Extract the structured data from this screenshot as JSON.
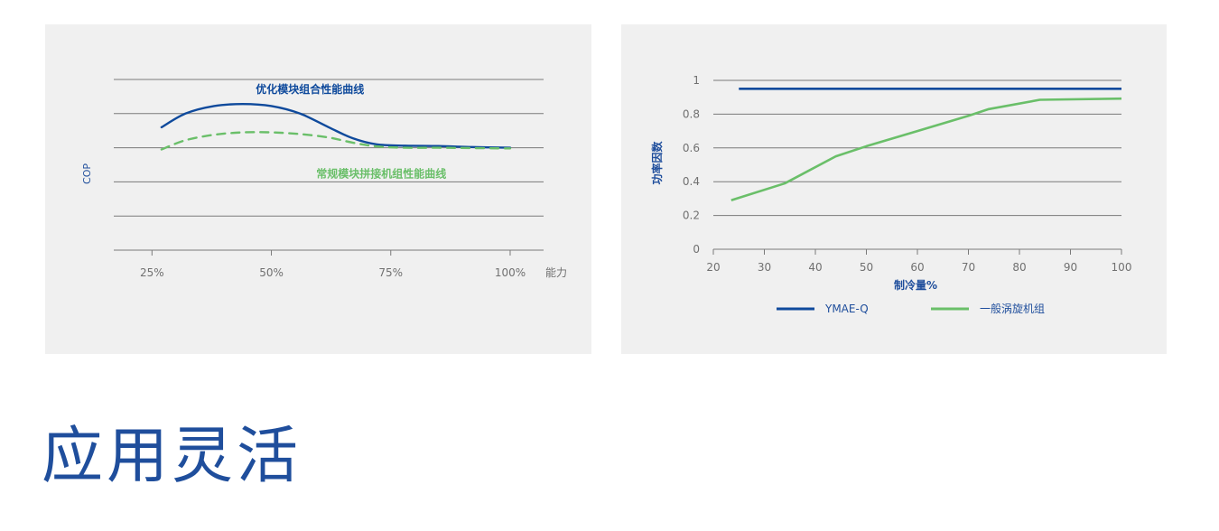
{
  "colors": {
    "panel_bg": "#f0f0f0",
    "grid": "#7a7a7a",
    "blue": "#0f4a9c",
    "green": "#6abf69",
    "axis_text": "#707070",
    "label_blue": "#1f4e9c"
  },
  "heading": "应用灵活",
  "chart_data": [
    {
      "type": "line",
      "xlabel": "能力",
      "ylabel": "COP",
      "x_ticks": [
        "25%",
        "50%",
        "75%",
        "100%"
      ],
      "x_tick_values": [
        25,
        50,
        75,
        100
      ],
      "xlim": [
        17,
        107
      ],
      "ylim": [
        0,
        5
      ],
      "y_grid_values": [
        0,
        1,
        2,
        3,
        4,
        5
      ],
      "grid": true,
      "series": [
        {
          "name": "优化模块组合性能曲线",
          "style": "solid",
          "color": "#0f4a9c",
          "x": [
            27,
            32,
            38,
            44,
            50,
            56,
            62,
            67,
            72,
            78,
            85,
            92,
            100
          ],
          "y": [
            3.6,
            4.0,
            4.22,
            4.28,
            4.22,
            4.0,
            3.6,
            3.28,
            3.1,
            3.06,
            3.05,
            3.02,
            3.0
          ]
        },
        {
          "name": "常规模块拼接机组性能曲线",
          "style": "dashed",
          "color": "#6abf69",
          "x": [
            27,
            32,
            38,
            44,
            50,
            56,
            62,
            67,
            72,
            78,
            85,
            92,
            100
          ],
          "y": [
            2.95,
            3.22,
            3.38,
            3.45,
            3.45,
            3.4,
            3.3,
            3.15,
            3.04,
            3.0,
            3.0,
            2.99,
            2.98
          ]
        }
      ]
    },
    {
      "type": "line",
      "xlabel": "制冷量%",
      "ylabel": "功率因数",
      "x_ticks": [
        "20",
        "30",
        "40",
        "50",
        "60",
        "70",
        "80",
        "90",
        "100"
      ],
      "x_tick_values": [
        20,
        30,
        40,
        50,
        60,
        70,
        80,
        90,
        100
      ],
      "y_ticks": [
        "0",
        "0.2",
        "0.4",
        "0.6",
        "0.8",
        "1"
      ],
      "y_tick_values": [
        0,
        0.2,
        0.4,
        0.6,
        0.8,
        1
      ],
      "xlim": [
        20,
        100
      ],
      "ylim": [
        0,
        1
      ],
      "grid": true,
      "legend_position": "bottom",
      "series": [
        {
          "name": "YMAE-Q",
          "color": "#0f4a9c",
          "x": [
            25,
            100
          ],
          "y": [
            0.95,
            0.95
          ]
        },
        {
          "name": "一般涡旋机组",
          "color": "#6abf69",
          "x": [
            23.5,
            34,
            44,
            50,
            60,
            70,
            74,
            84,
            100
          ],
          "y": [
            0.29,
            0.39,
            0.55,
            0.61,
            0.7,
            0.79,
            0.83,
            0.885,
            0.892
          ]
        }
      ]
    }
  ]
}
